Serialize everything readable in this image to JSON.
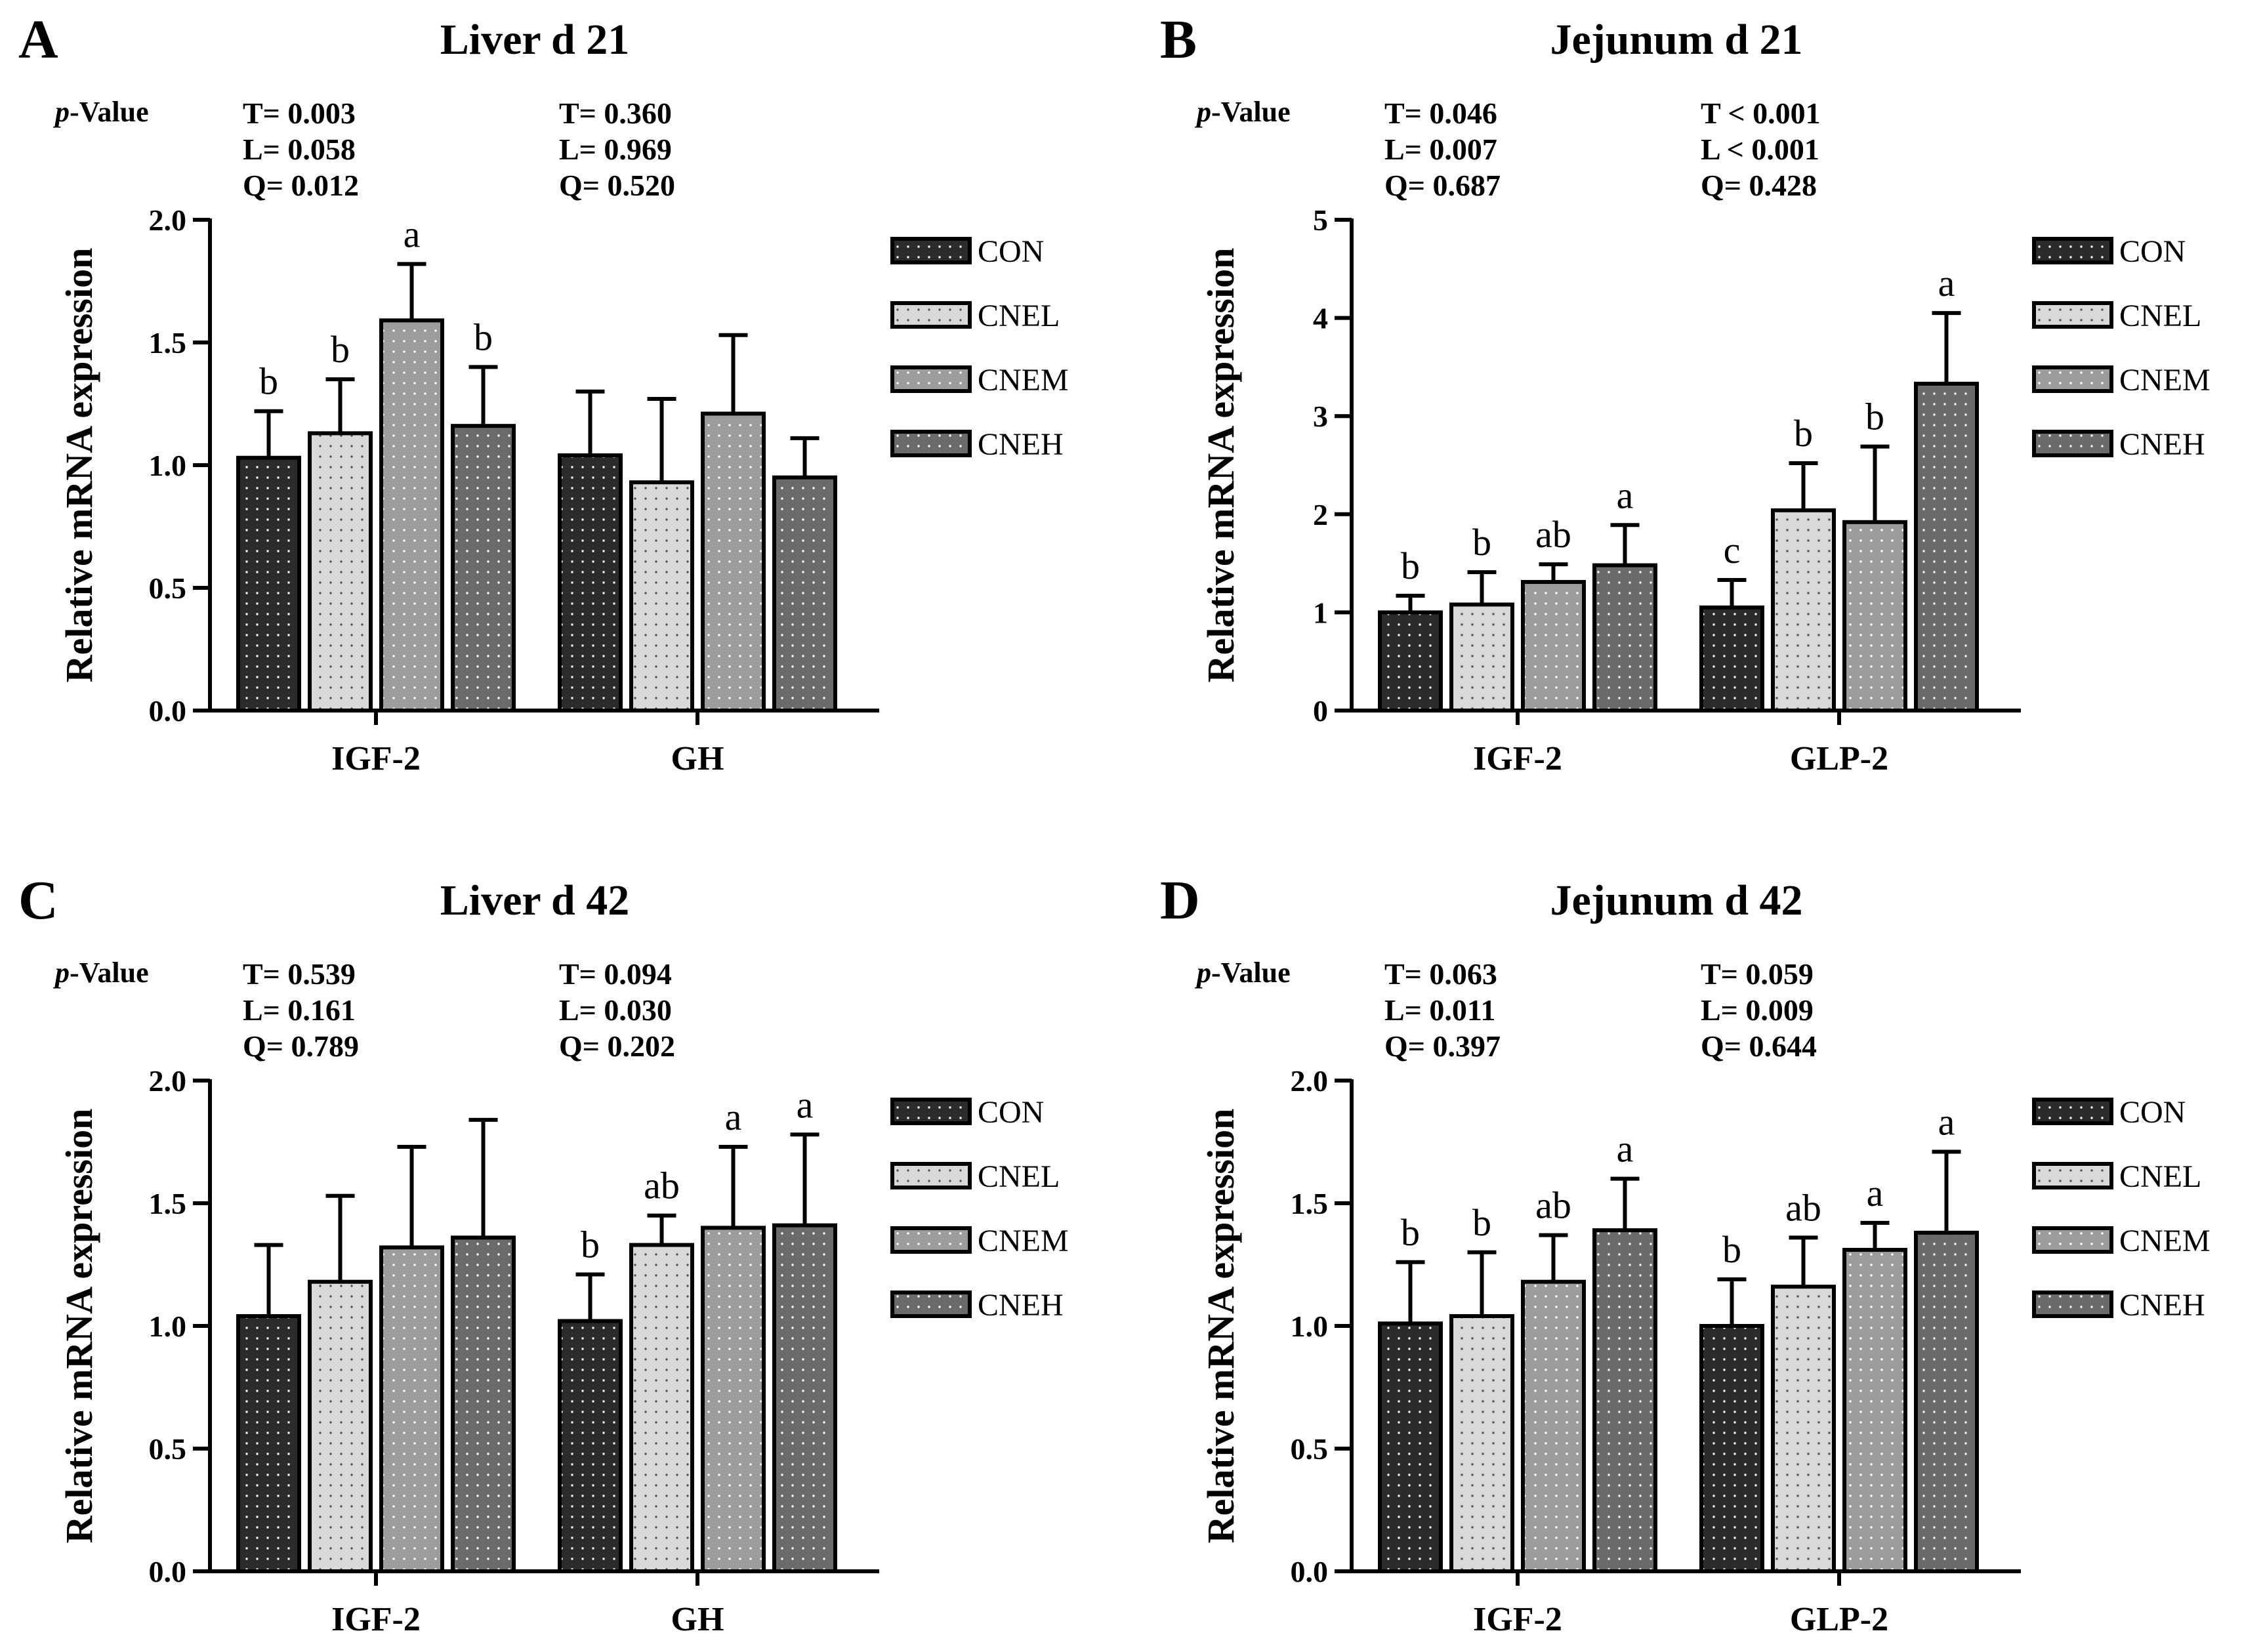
{
  "groups": [
    {
      "name": "CON",
      "color": "#2b2b2b"
    },
    {
      "name": "CNEL",
      "color": "#d6d6d6"
    },
    {
      "name": "CNEM",
      "color": "#9a9a9a"
    },
    {
      "name": "CNEH",
      "color": "#6a6a6a"
    }
  ],
  "chart_data": [
    {
      "type": "bar",
      "panel": "A",
      "title": "Liver  d 21",
      "ylabel": "Relative mRNA expression",
      "ylim": [
        0,
        2.0
      ],
      "yticks": [
        "0.0",
        "0.5",
        "1.0",
        "1.5",
        "2.0"
      ],
      "categories": [
        "IGF-2",
        "GH"
      ],
      "pvalue_label": "-Value",
      "pvalue_italic": "p",
      "pvalues": [
        [
          "T= 0.003",
          "L= 0.058",
          "Q= 0.012"
        ],
        [
          "T= 0.360",
          "L= 0.969",
          "Q= 0.520"
        ]
      ],
      "series": [
        {
          "name": "CON",
          "values": [
            1.03,
            1.04
          ],
          "errors": [
            0.19,
            0.26
          ],
          "labels": [
            "b",
            ""
          ]
        },
        {
          "name": "CNEL",
          "values": [
            1.13,
            0.93
          ],
          "errors": [
            0.22,
            0.34
          ],
          "labels": [
            "b",
            ""
          ]
        },
        {
          "name": "CNEM",
          "values": [
            1.59,
            1.21
          ],
          "errors": [
            0.23,
            0.32
          ],
          "labels": [
            "a",
            ""
          ]
        },
        {
          "name": "CNEH",
          "values": [
            1.16,
            0.95
          ],
          "errors": [
            0.24,
            0.16
          ],
          "labels": [
            "b",
            ""
          ]
        }
      ]
    },
    {
      "type": "bar",
      "panel": "B",
      "title": "Jejunum  d 21",
      "ylabel": "Relative mRNA expression",
      "ylim": [
        0,
        5
      ],
      "yticks": [
        "0",
        "1",
        "2",
        "3",
        "4",
        "5"
      ],
      "categories": [
        "IGF-2",
        "GLP-2"
      ],
      "pvalue_label": "-Value",
      "pvalue_italic": "p",
      "pvalues": [
        [
          "T= 0.046",
          "L= 0.007",
          "Q= 0.687"
        ],
        [
          "T < 0.001",
          "L < 0.001",
          "Q= 0.428"
        ]
      ],
      "series": [
        {
          "name": "CON",
          "values": [
            1.0,
            1.05
          ],
          "errors": [
            0.17,
            0.28
          ],
          "labels": [
            "b",
            "c"
          ]
        },
        {
          "name": "CNEL",
          "values": [
            1.08,
            2.04
          ],
          "errors": [
            0.33,
            0.48
          ],
          "labels": [
            "b",
            "b"
          ]
        },
        {
          "name": "CNEM",
          "values": [
            1.31,
            1.92
          ],
          "errors": [
            0.18,
            0.77
          ],
          "labels": [
            "ab",
            "b"
          ]
        },
        {
          "name": "CNEH",
          "values": [
            1.48,
            3.33
          ],
          "errors": [
            0.41,
            0.72
          ],
          "labels": [
            "a",
            "a"
          ]
        }
      ]
    },
    {
      "type": "bar",
      "panel": "C",
      "title": "Liver  d 42",
      "ylabel": "Relative mRNA expression",
      "ylim": [
        0,
        2.0
      ],
      "yticks": [
        "0.0",
        "0.5",
        "1.0",
        "1.5",
        "2.0"
      ],
      "categories": [
        "IGF-2",
        "GH"
      ],
      "pvalue_label": "-Value",
      "pvalue_italic": "p",
      "pvalues": [
        [
          "T= 0.539",
          "L= 0.161",
          "Q= 0.789"
        ],
        [
          "T= 0.094",
          "L= 0.030",
          "Q= 0.202"
        ]
      ],
      "series": [
        {
          "name": "CON",
          "values": [
            1.04,
            1.02
          ],
          "errors": [
            0.29,
            0.19
          ],
          "labels": [
            "",
            "b"
          ]
        },
        {
          "name": "CNEL",
          "values": [
            1.18,
            1.33
          ],
          "errors": [
            0.35,
            0.12
          ],
          "labels": [
            "",
            "ab"
          ]
        },
        {
          "name": "CNEM",
          "values": [
            1.32,
            1.4
          ],
          "errors": [
            0.41,
            0.33
          ],
          "labels": [
            "",
            "a"
          ]
        },
        {
          "name": "CNEH",
          "values": [
            1.36,
            1.41
          ],
          "errors": [
            0.48,
            0.37
          ],
          "labels": [
            "",
            "a"
          ]
        }
      ]
    },
    {
      "type": "bar",
      "panel": "D",
      "title": "Jejunum  d 42",
      "ylabel": "Relative mRNA expression",
      "ylim": [
        0,
        2.0
      ],
      "yticks": [
        "0.0",
        "0.5",
        "1.0",
        "1.5",
        "2.0"
      ],
      "categories": [
        "IGF-2",
        "GLP-2"
      ],
      "pvalue_label": "-Value",
      "pvalue_italic": "p",
      "pvalues": [
        [
          "T= 0.063",
          "L= 0.011",
          "Q= 0.397"
        ],
        [
          "T= 0.059",
          "L= 0.009",
          "Q= 0.644"
        ]
      ],
      "series": [
        {
          "name": "CON",
          "values": [
            1.01,
            1.0
          ],
          "errors": [
            0.25,
            0.19
          ],
          "labels": [
            "b",
            "b"
          ]
        },
        {
          "name": "CNEL",
          "values": [
            1.04,
            1.16
          ],
          "errors": [
            0.26,
            0.2
          ],
          "labels": [
            "b",
            "ab"
          ]
        },
        {
          "name": "CNEM",
          "values": [
            1.18,
            1.31
          ],
          "errors": [
            0.19,
            0.11
          ],
          "labels": [
            "ab",
            "a"
          ]
        },
        {
          "name": "CNEH",
          "values": [
            1.39,
            1.38
          ],
          "errors": [
            0.21,
            0.33
          ],
          "labels": [
            "a",
            "a"
          ]
        }
      ]
    }
  ]
}
